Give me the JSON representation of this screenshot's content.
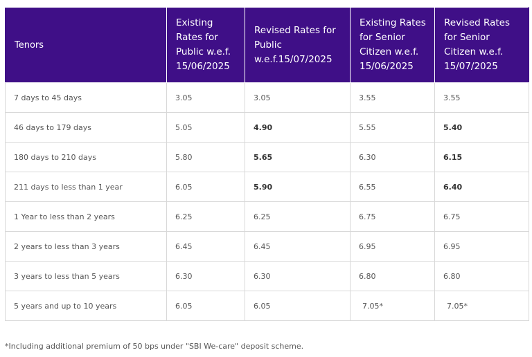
{
  "table": {
    "headers": [
      "Tenors",
      "Existing\nRates for\nPublic w.e.f.\n15/06/2025",
      "Revised Rates for\nPublic\nw.e.f.15/07/2025",
      "Existing Rates\nfor Senior\nCitizen w.e.f.\n15/06/2025",
      "Revised Rates\nfor Senior\nCitizen  w.e.f.\n15/07/2025"
    ],
    "rows": [
      {
        "tenor": "7 days to 45 days",
        "existing_public": "3.05",
        "revised_public": "3.05",
        "existing_senior": "3.55",
        "revised_senior": "3.55"
      },
      {
        "tenor": "46 days to 179 days",
        "existing_public": "5.05",
        "revised_public": "4.90",
        "existing_senior": "5.55",
        "revised_senior": "5.40"
      },
      {
        "tenor": "180 days to 210 days",
        "existing_public": "5.80",
        "revised_public": "5.65",
        "existing_senior": "6.30",
        "revised_senior": "6.15"
      },
      {
        "tenor": "211 days to less than 1 year",
        "existing_public": "6.05",
        "revised_public": "5.90",
        "existing_senior": "6.55",
        "revised_senior": "6.40"
      },
      {
        "tenor": "1 Year to less than 2 years",
        "existing_public": "6.25",
        "revised_public": "6.25",
        "existing_senior": "6.75",
        "revised_senior": "6.75"
      },
      {
        "tenor": "2 years to less than 3 years",
        "existing_public": "6.45",
        "revised_public": "6.45",
        "existing_senior": "6.95",
        "revised_senior": "6.95"
      },
      {
        "tenor": "3 years to less than 5 years",
        "existing_public": "6.30",
        "revised_public": "6.30",
        "existing_senior": "6.80",
        "revised_senior": "6.80"
      },
      {
        "tenor": "5 years and up to 10 years",
        "existing_public": "6.05",
        "revised_public": "6.05",
        "existing_senior": "7.05*",
        "revised_senior": "7.05*"
      }
    ]
  },
  "footnote": "*Including additional premium of 50 bps under \"SBI We-care\" deposit scheme."
}
